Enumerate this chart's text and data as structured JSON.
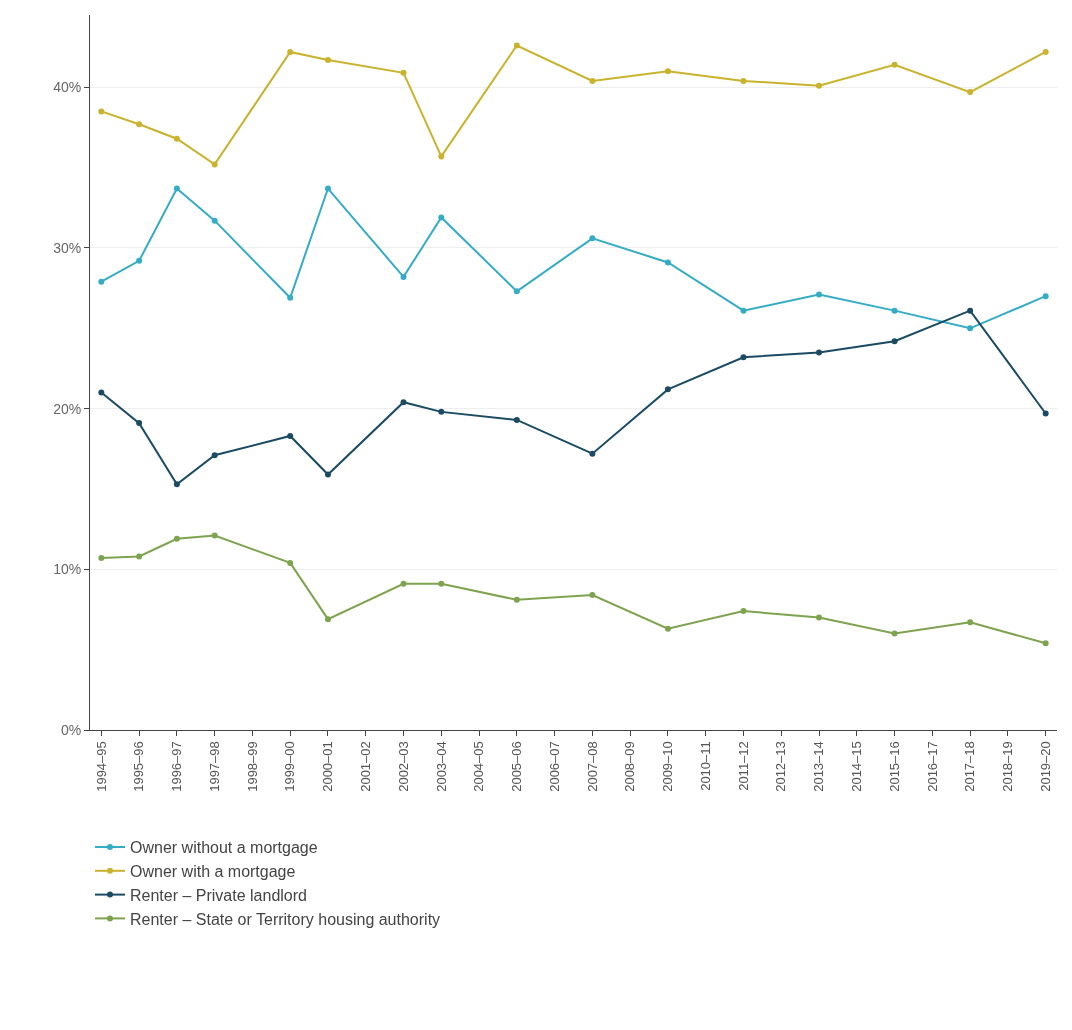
{
  "chart_data": {
    "type": "line",
    "categories": [
      "1994–95",
      "1995–96",
      "1996–97",
      "1997–98",
      "1998–99",
      "1999–00",
      "2000–01",
      "2001–02",
      "2002–03",
      "2003–04",
      "2004–05",
      "2005–06",
      "2006–07",
      "2007–08",
      "2008–09",
      "2009–10",
      "2010–11",
      "2011–12",
      "2012–13",
      "2013–14",
      "2014–15",
      "2015–16",
      "2016–17",
      "2017–18",
      "2018–19",
      "2019–20"
    ],
    "series": [
      {
        "name": "Owner without a mortgage",
        "color": "#35acc6",
        "values": [
          27.9,
          29.2,
          33.7,
          31.7,
          null,
          26.9,
          33.7,
          null,
          28.2,
          31.9,
          null,
          27.3,
          null,
          30.6,
          null,
          29.1,
          null,
          26.1,
          null,
          27.1,
          null,
          26.1,
          null,
          25.0,
          null,
          27.0
        ]
      },
      {
        "name": "Owner with a mortgage",
        "color": "#c9b22d",
        "values": [
          38.5,
          37.7,
          36.8,
          35.2,
          null,
          42.2,
          41.7,
          null,
          40.9,
          35.7,
          null,
          42.6,
          null,
          40.4,
          null,
          41.0,
          null,
          40.4,
          null,
          40.1,
          null,
          41.4,
          null,
          39.7,
          null,
          42.2
        ]
      },
      {
        "name": "Renter – Private landlord",
        "color": "#1a4b63",
        "values": [
          21.0,
          19.1,
          15.3,
          17.1,
          null,
          18.3,
          15.9,
          null,
          20.4,
          19.8,
          null,
          19.3,
          null,
          17.2,
          null,
          21.2,
          null,
          23.2,
          null,
          23.5,
          null,
          24.2,
          null,
          26.1,
          null,
          19.7
        ]
      },
      {
        "name": "Renter – State or Territory housing authority",
        "color": "#7ea34f",
        "values": [
          10.7,
          10.8,
          11.9,
          12.1,
          null,
          10.4,
          6.9,
          null,
          9.1,
          9.1,
          null,
          8.1,
          null,
          8.4,
          null,
          6.3,
          null,
          7.4,
          null,
          7.0,
          null,
          6.0,
          null,
          6.7,
          null,
          5.4
        ]
      }
    ],
    "ylim": [
      0,
      44.5
    ],
    "yticks": [
      {
        "value": 0,
        "label": "0%"
      },
      {
        "value": 10,
        "label": "10%"
      },
      {
        "value": 20,
        "label": "20%"
      },
      {
        "value": 30,
        "label": "30%"
      },
      {
        "value": 40,
        "label": "40%"
      }
    ],
    "grid": "y",
    "legend": "bottom",
    "marker": "circle",
    "line_style": "solid"
  }
}
